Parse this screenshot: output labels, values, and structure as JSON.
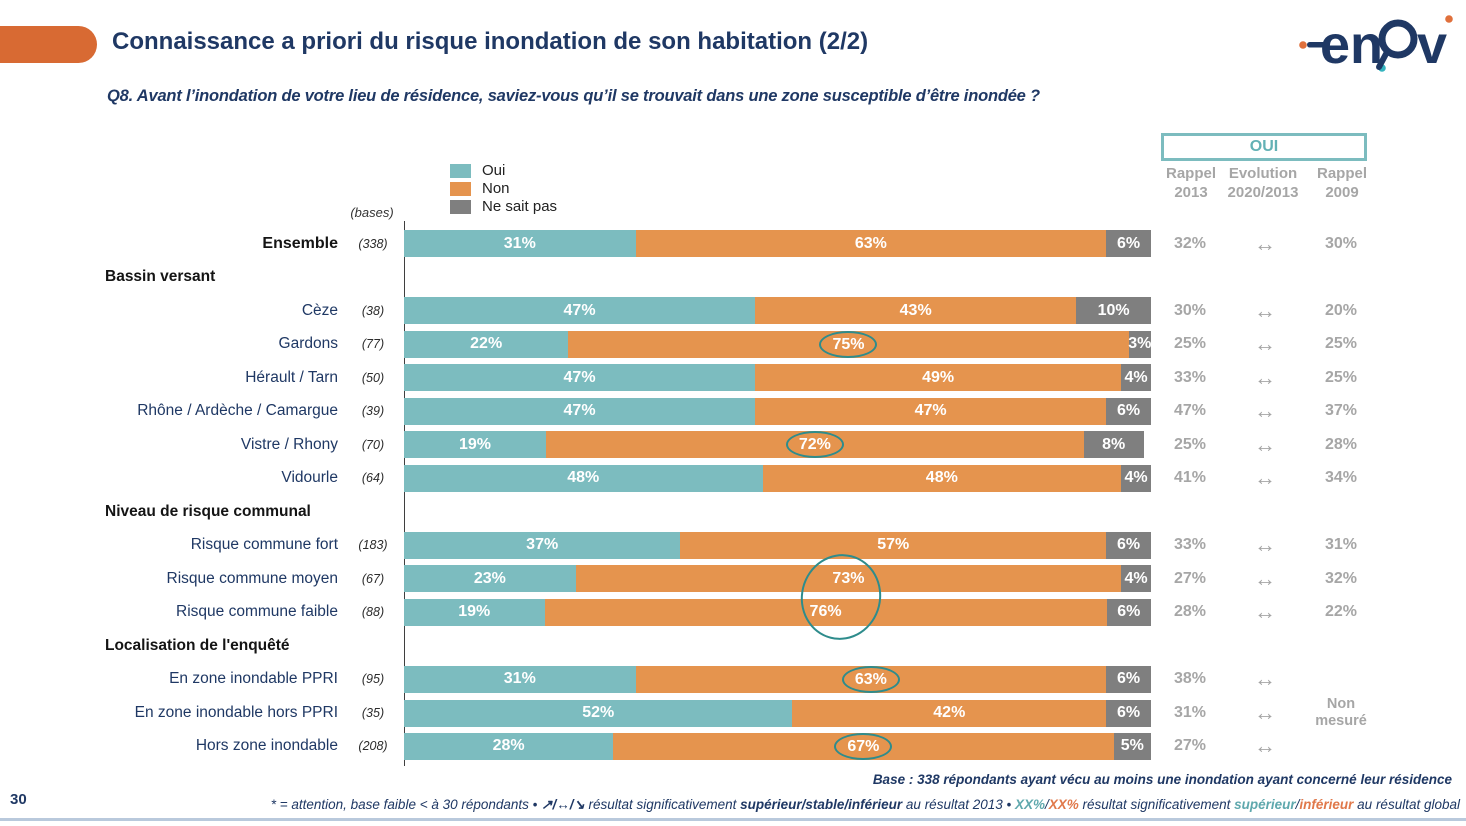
{
  "header": {
    "title": "Connaissance a priori du risque inondation de son habitation (2/2)",
    "logo_text": "enov"
  },
  "question": "Q8. Avant l’inondation de votre lieu de résidence, saviez-vous qu’il se trouvait dans une zone susceptible d’être inondée ?",
  "bases_label": "(bases)",
  "recall": {
    "header": "OUI",
    "columns": [
      {
        "label": "Rappel\n2013"
      },
      {
        "label": "Evolution\n2020/2013"
      },
      {
        "label": "Rappel\n2009"
      }
    ]
  },
  "colors": {
    "oui": "#7CBCBF",
    "non": "#E5944E",
    "ne_sait_pas": "#7F7F7F",
    "navy": "#1F3864",
    "accent_orange": "#D86A33",
    "gray_text": "#A6A6A6",
    "circle_teal": "#2E8C8C"
  },
  "chart_data": {
    "type": "bar",
    "stacked": true,
    "orientation": "horizontal",
    "xlim": [
      0,
      100
    ],
    "unit": "%",
    "series": [
      {
        "name": "Oui",
        "color": "#7CBCBF"
      },
      {
        "name": "Non",
        "color": "#E5944E"
      },
      {
        "name": "Ne sait pas",
        "color": "#7F7F7F"
      }
    ],
    "rows": [
      {
        "label": "Ensemble",
        "base": "(338)",
        "bold": true,
        "values": [
          31,
          63,
          6
        ],
        "recall_2013": "32%",
        "evolution": "↔",
        "recall_2009": "30%"
      },
      {
        "section": "Bassin versant"
      },
      {
        "label": "Cèze",
        "base": "(38)",
        "values": [
          47,
          43,
          10
        ],
        "recall_2013": "30%",
        "evolution": "↔",
        "recall_2009": "20%"
      },
      {
        "label": "Gardons",
        "base": "(77)",
        "values": [
          22,
          75,
          3
        ],
        "circle": 1,
        "recall_2013": "25%",
        "evolution": "↔",
        "recall_2009": "25%"
      },
      {
        "label": "Hérault / Tarn",
        "base": "(50)",
        "values": [
          47,
          49,
          4
        ],
        "recall_2013": "33%",
        "evolution": "↔",
        "recall_2009": "25%"
      },
      {
        "label": "Rhône / Ardèche / Camargue",
        "base": "(39)",
        "values": [
          47,
          47,
          6
        ],
        "recall_2013": "47%",
        "evolution": "↔",
        "recall_2009": "37%"
      },
      {
        "label": "Vistre / Rhony",
        "base": "(70)",
        "values": [
          19,
          72,
          8
        ],
        "circle": 1,
        "recall_2013": "25%",
        "evolution": "↔",
        "recall_2009": "28%"
      },
      {
        "label": "Vidourle",
        "base": "(64)",
        "values": [
          48,
          48,
          4
        ],
        "recall_2013": "41%",
        "evolution": "↔",
        "recall_2009": "34%"
      },
      {
        "section": "Niveau de risque communal"
      },
      {
        "label": "Risque commune fort",
        "base": "(183)",
        "values": [
          37,
          57,
          6
        ],
        "recall_2013": "33%",
        "evolution": "↔",
        "recall_2009": "31%"
      },
      {
        "label": "Risque commune moyen",
        "base": "(67)",
        "values": [
          23,
          73,
          4
        ],
        "recall_2013": "27%",
        "evolution": "↔",
        "recall_2009": "32%"
      },
      {
        "label": "Risque commune faible",
        "base": "(88)",
        "values": [
          19,
          76,
          6
        ],
        "recall_2013": "28%",
        "evolution": "↔",
        "recall_2009": "22%"
      },
      {
        "section": "Localisation de l'enquêté"
      },
      {
        "label": "En zone inondable PPRI",
        "base": "(95)",
        "values": [
          31,
          63,
          6
        ],
        "circle": 1,
        "recall_2013": "38%",
        "evolution": "↔",
        "recall_2009": ""
      },
      {
        "label": "En zone inondable hors PPRI",
        "base": "(35)",
        "values": [
          52,
          42,
          6
        ],
        "recall_2013": "31%",
        "evolution": "↔",
        "recall_2009": "Non\nmesuré"
      },
      {
        "label": "Hors zone inondable",
        "base": "(208)",
        "values": [
          28,
          67,
          5
        ],
        "circle": 1,
        "recall_2013": "27%",
        "evolution": "↔",
        "recall_2009": ""
      }
    ],
    "highlighted_non_values": [
      "75%",
      "72%",
      "73%",
      "76%",
      "63%",
      "67%"
    ]
  },
  "footnotes": {
    "base": "Base : 338 répondants ayant vécu au moins une inondation ayant concerné leur résidence",
    "page_number": "30",
    "legend_segments": [
      {
        "text": "* = attention, base faible < à 30 répondants • ",
        "color": "navy",
        "bold": false
      },
      {
        "text": "↗/↔/↘ ",
        "color": "navy",
        "bold": true
      },
      {
        "text": "résultat significativement ",
        "color": "navy",
        "bold": false
      },
      {
        "text": "supérieur/stable/inférieur",
        "color": "navy",
        "bold": true
      },
      {
        "text": " au résultat 2013 • ",
        "color": "navy",
        "bold": false
      },
      {
        "text": "XX%",
        "color": "teal",
        "bold": true
      },
      {
        "text": "/",
        "color": "navy",
        "bold": false
      },
      {
        "text": "XX%",
        "color": "orange",
        "bold": true
      },
      {
        "text": " résultat significativement ",
        "color": "navy",
        "bold": false
      },
      {
        "text": "supérieur",
        "color": "teal",
        "bold": true
      },
      {
        "text": "/",
        "color": "navy",
        "bold": false
      },
      {
        "text": "inférieur",
        "color": "orange",
        "bold": true
      },
      {
        "text": " au résultat global",
        "color": "navy",
        "bold": false
      }
    ]
  }
}
